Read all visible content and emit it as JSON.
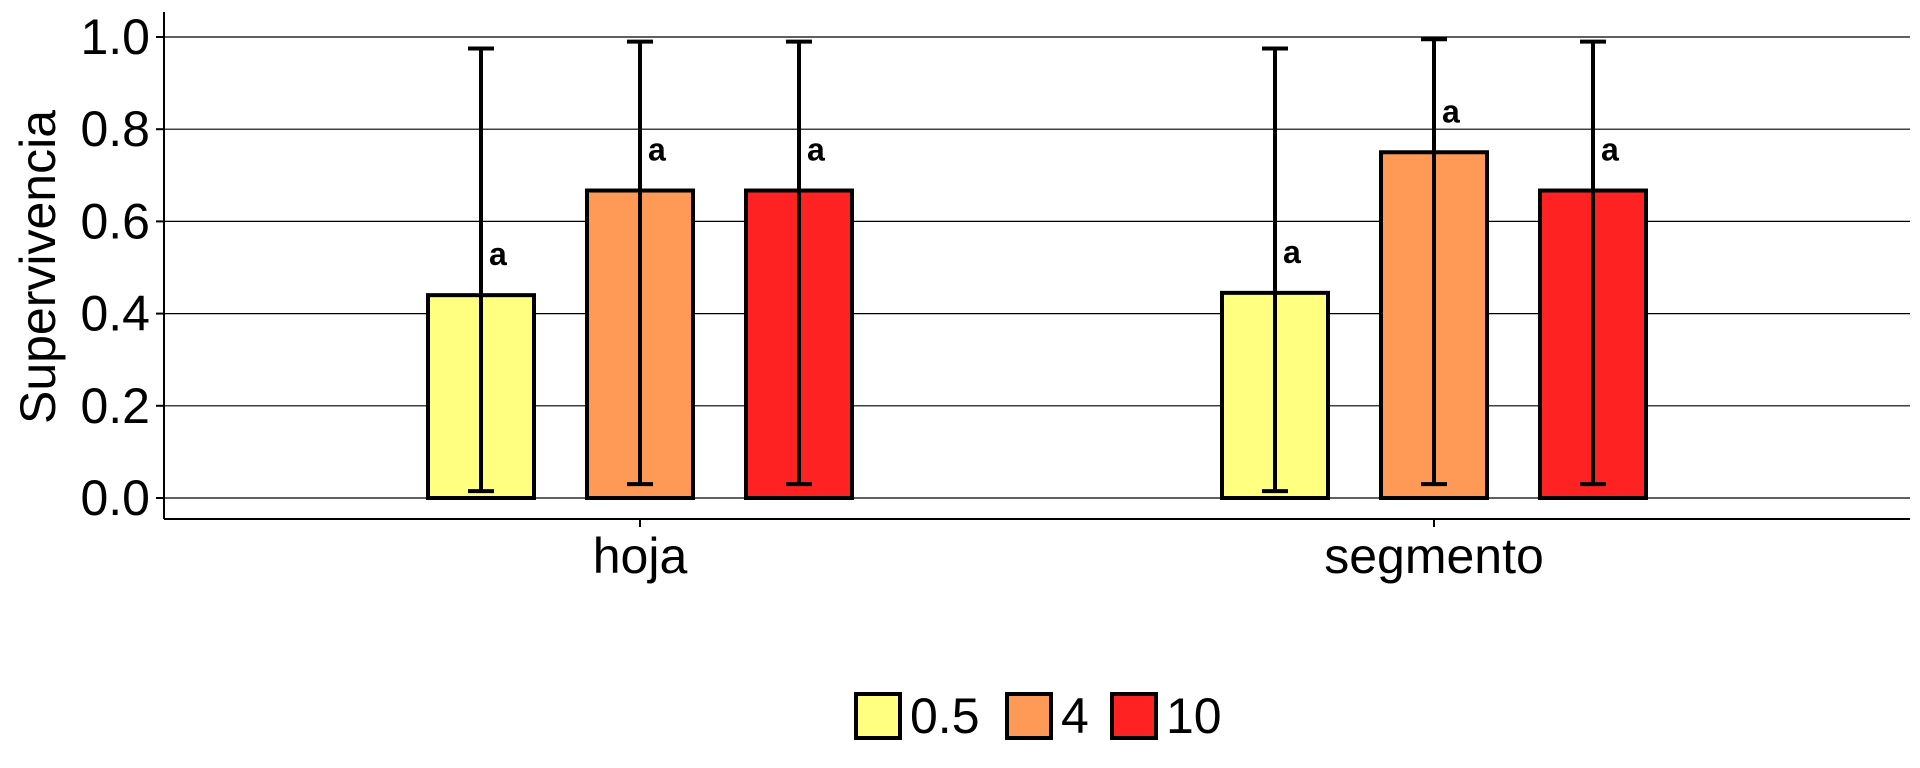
{
  "chart_data": {
    "type": "bar",
    "title": "",
    "xlabel": "",
    "ylabel": "Supervivencia",
    "ylim": [
      0,
      1
    ],
    "yticks": [
      "0.0",
      "0.2",
      "0.4",
      "0.6",
      "0.8",
      "1.0"
    ],
    "grid": "horizontal",
    "legend_position": "bottom",
    "categories": [
      "hoja",
      "segmento"
    ],
    "series": [
      {
        "name": "0.5",
        "color": "#FFFF80",
        "values": [
          0.44,
          0.445
        ],
        "err_low": [
          0.015,
          0.015
        ],
        "err_high": [
          0.975,
          0.975
        ],
        "labels": [
          "a",
          "a"
        ]
      },
      {
        "name": "4",
        "color": "#FF9955",
        "values": [
          0.667,
          0.75
        ],
        "err_low": [
          0.03,
          0.03
        ],
        "err_high": [
          0.99,
          0.995
        ],
        "labels": [
          "a",
          "a"
        ]
      },
      {
        "name": "10",
        "color": "#FF2222",
        "values": [
          0.667,
          0.667
        ],
        "err_low": [
          0.03,
          0.03
        ],
        "err_high": [
          0.99,
          0.99
        ],
        "labels": [
          "a",
          "a"
        ]
      }
    ]
  }
}
